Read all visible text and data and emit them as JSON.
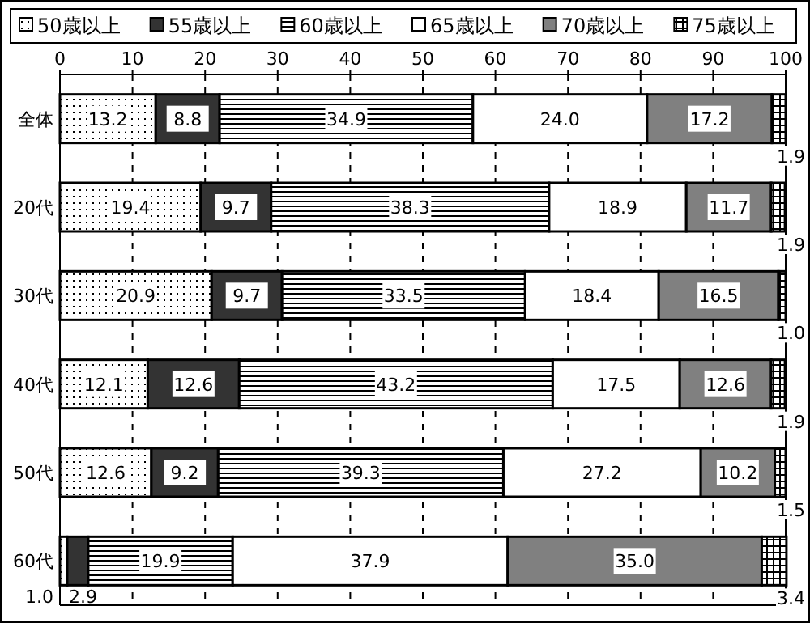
{
  "chart_data": {
    "type": "bar",
    "orientation": "horizontal",
    "stacked": true,
    "categories": [
      "全体",
      "20代",
      "30代",
      "40代",
      "50代",
      "60代"
    ],
    "series": [
      {
        "name": "50歳以上",
        "color": "#000000",
        "values": [
          13.2,
          19.4,
          20.9,
          12.1,
          12.6,
          1.0
        ],
        "value_labels": [
          "13.2",
          "19.4",
          "20.9",
          "12.1",
          "12.6",
          "1.0"
        ]
      },
      {
        "name": "55歳以上",
        "color": "#333333",
        "values": [
          8.8,
          9.7,
          9.7,
          12.6,
          9.2,
          2.9
        ],
        "value_labels": [
          "8.8",
          "9.7",
          "9.7",
          "12.6",
          "9.2",
          "2.9"
        ]
      },
      {
        "name": "60歳以上",
        "color": "#000000",
        "values": [
          34.9,
          38.3,
          33.5,
          43.2,
          39.3,
          19.9
        ],
        "value_labels": [
          "34.9",
          "38.3",
          "33.5",
          "43.2",
          "39.3",
          "19.9"
        ]
      },
      {
        "name": "65歳以上",
        "color": "#ffffff",
        "values": [
          24.0,
          18.9,
          18.4,
          17.5,
          27.2,
          37.9
        ],
        "value_labels": [
          "24.0",
          "18.9",
          "18.4",
          "17.5",
          "27.2",
          "37.9"
        ]
      },
      {
        "name": "70歳以上",
        "color": "#808080",
        "values": [
          17.2,
          11.7,
          16.5,
          12.6,
          10.2,
          35.0
        ],
        "value_labels": [
          "17.2",
          "11.7",
          "16.5",
          "12.6",
          "10.2",
          "35.0"
        ]
      },
      {
        "name": "75歳以上",
        "color": "#000000",
        "values": [
          1.9,
          1.9,
          1.0,
          1.9,
          1.5,
          3.4
        ],
        "value_labels": [
          "1.9",
          "1.9",
          "1.0",
          "1.9",
          "1.5",
          "3.4"
        ]
      }
    ],
    "xlim": [
      0,
      100
    ],
    "xticks": [
      0,
      10,
      20,
      30,
      40,
      50,
      60,
      70,
      80,
      90,
      100
    ],
    "grid": "x",
    "legend": "top"
  }
}
